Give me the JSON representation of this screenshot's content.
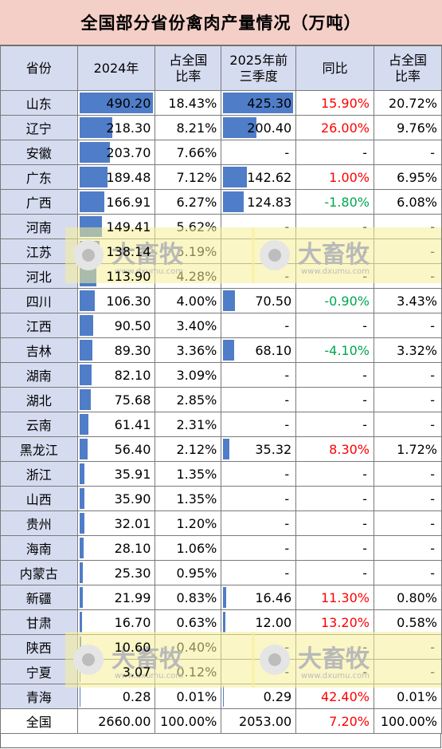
{
  "title": "全国部分省份禽肉产量情况（万吨）",
  "header": {
    "province": "省份",
    "y2024": "2024年",
    "share1_line1": "占全国",
    "share1_line2": "比率",
    "q2025_line1": "2025年前",
    "q2025_line2": "三季度",
    "yoy": "同比",
    "share2_line1": "占全国",
    "share2_line2": "比率"
  },
  "watermark": {
    "brand": "大畜牧",
    "url": "www.dxumu.com"
  },
  "colors": {
    "bar": "#4f7dc8",
    "header_bg": "#d6dcf0",
    "title_bg": "#f4cfc8",
    "positive": "#ff0000",
    "negative": "#00a650"
  },
  "chart_data": {
    "type": "table",
    "title": "全国部分省份禽肉产量情况（万吨）",
    "columns": [
      "省份",
      "2024年",
      "占全国比率",
      "2025年前三季度",
      "同比",
      "占全国比率"
    ],
    "rows": [
      {
        "province": "山东",
        "y2024": "490.20",
        "v2024": 490.2,
        "share2024": "18.43%",
        "q2025": "425.30",
        "vq2025": 425.3,
        "yoy": "15.90%",
        "yoy_sign": "pos",
        "share2025": "20.72%"
      },
      {
        "province": "辽宁",
        "y2024": "218.30",
        "v2024": 218.3,
        "share2024": "8.21%",
        "q2025": "200.40",
        "vq2025": 200.4,
        "yoy": "26.00%",
        "yoy_sign": "pos",
        "share2025": "9.76%"
      },
      {
        "province": "安徽",
        "y2024": "203.70",
        "v2024": 203.7,
        "share2024": "7.66%",
        "q2025": "-",
        "vq2025": 0,
        "yoy": "-",
        "yoy_sign": "none",
        "share2025": "-"
      },
      {
        "province": "广东",
        "y2024": "189.48",
        "v2024": 189.48,
        "share2024": "7.12%",
        "q2025": "142.62",
        "vq2025": 142.62,
        "yoy": "1.00%",
        "yoy_sign": "pos",
        "share2025": "6.95%"
      },
      {
        "province": "广西",
        "y2024": "166.91",
        "v2024": 166.91,
        "share2024": "6.27%",
        "q2025": "124.83",
        "vq2025": 124.83,
        "yoy": "-1.80%",
        "yoy_sign": "neg",
        "share2025": "6.08%"
      },
      {
        "province": "河南",
        "y2024": "149.41",
        "v2024": 149.41,
        "share2024": "5.62%",
        "q2025": "-",
        "vq2025": 0,
        "yoy": "-",
        "yoy_sign": "none",
        "share2025": "-"
      },
      {
        "province": "江苏",
        "y2024": "138.14",
        "v2024": 138.14,
        "share2024": "5.19%",
        "q2025": "-",
        "vq2025": 0,
        "yoy": "-",
        "yoy_sign": "none",
        "share2025": "-"
      },
      {
        "province": "河北",
        "y2024": "113.90",
        "v2024": 113.9,
        "share2024": "4.28%",
        "q2025": "-",
        "vq2025": 0,
        "yoy": "-",
        "yoy_sign": "none",
        "share2025": "-"
      },
      {
        "province": "四川",
        "y2024": "106.30",
        "v2024": 106.3,
        "share2024": "4.00%",
        "q2025": "70.50",
        "vq2025": 70.5,
        "yoy": "-0.90%",
        "yoy_sign": "neg",
        "share2025": "3.43%"
      },
      {
        "province": "江西",
        "y2024": "90.50",
        "v2024": 90.5,
        "share2024": "3.40%",
        "q2025": "-",
        "vq2025": 0,
        "yoy": "-",
        "yoy_sign": "none",
        "share2025": "-"
      },
      {
        "province": "吉林",
        "y2024": "89.30",
        "v2024": 89.3,
        "share2024": "3.36%",
        "q2025": "68.10",
        "vq2025": 68.1,
        "yoy": "-4.10%",
        "yoy_sign": "neg",
        "share2025": "3.32%"
      },
      {
        "province": "湖南",
        "y2024": "82.10",
        "v2024": 82.1,
        "share2024": "3.09%",
        "q2025": "-",
        "vq2025": 0,
        "yoy": "-",
        "yoy_sign": "none",
        "share2025": "-"
      },
      {
        "province": "湖北",
        "y2024": "75.68",
        "v2024": 75.68,
        "share2024": "2.85%",
        "q2025": "-",
        "vq2025": 0,
        "yoy": "-",
        "yoy_sign": "none",
        "share2025": "-"
      },
      {
        "province": "云南",
        "y2024": "61.41",
        "v2024": 61.41,
        "share2024": "2.31%",
        "q2025": "-",
        "vq2025": 0,
        "yoy": "-",
        "yoy_sign": "none",
        "share2025": "-"
      },
      {
        "province": "黑龙江",
        "y2024": "56.40",
        "v2024": 56.4,
        "share2024": "2.12%",
        "q2025": "35.32",
        "vq2025": 35.32,
        "yoy": "8.30%",
        "yoy_sign": "pos",
        "share2025": "1.72%"
      },
      {
        "province": "浙江",
        "y2024": "35.91",
        "v2024": 35.91,
        "share2024": "1.35%",
        "q2025": "-",
        "vq2025": 0,
        "yoy": "-",
        "yoy_sign": "none",
        "share2025": "-"
      },
      {
        "province": "山西",
        "y2024": "35.90",
        "v2024": 35.9,
        "share2024": "1.35%",
        "q2025": "-",
        "vq2025": 0,
        "yoy": "-",
        "yoy_sign": "none",
        "share2025": "-"
      },
      {
        "province": "贵州",
        "y2024": "32.01",
        "v2024": 32.01,
        "share2024": "1.20%",
        "q2025": "-",
        "vq2025": 0,
        "yoy": "-",
        "yoy_sign": "none",
        "share2025": "-"
      },
      {
        "province": "海南",
        "y2024": "28.10",
        "v2024": 28.1,
        "share2024": "1.06%",
        "q2025": "-",
        "vq2025": 0,
        "yoy": "-",
        "yoy_sign": "none",
        "share2025": "-"
      },
      {
        "province": "内蒙古",
        "y2024": "25.30",
        "v2024": 25.3,
        "share2024": "0.95%",
        "q2025": "-",
        "vq2025": 0,
        "yoy": "-",
        "yoy_sign": "none",
        "share2025": "-"
      },
      {
        "province": "新疆",
        "y2024": "21.99",
        "v2024": 21.99,
        "share2024": "0.83%",
        "q2025": "16.46",
        "vq2025": 16.46,
        "yoy": "11.30%",
        "yoy_sign": "pos",
        "share2025": "0.80%"
      },
      {
        "province": "甘肃",
        "y2024": "16.70",
        "v2024": 16.7,
        "share2024": "0.63%",
        "q2025": "12.00",
        "vq2025": 12.0,
        "yoy": "13.20%",
        "yoy_sign": "pos",
        "share2025": "0.58%"
      },
      {
        "province": "陕西",
        "y2024": "10.60",
        "v2024": 10.6,
        "share2024": "0.40%",
        "q2025": "-",
        "vq2025": 0,
        "yoy": "-",
        "yoy_sign": "none",
        "share2025": "-"
      },
      {
        "province": "宁夏",
        "y2024": "3.07",
        "v2024": 3.07,
        "share2024": "0.12%",
        "q2025": "-",
        "vq2025": 0,
        "yoy": "-",
        "yoy_sign": "none",
        "share2025": "-"
      },
      {
        "province": "青海",
        "y2024": "0.28",
        "v2024": 0.28,
        "share2024": "0.01%",
        "q2025": "0.29",
        "vq2025": 0.29,
        "yoy": "42.40%",
        "yoy_sign": "pos",
        "share2025": "0.01%"
      }
    ],
    "total": {
      "province": "全国",
      "y2024": "2660.00",
      "share2024": "100.00%",
      "q2025": "2053.00",
      "yoy": "7.20%",
      "yoy_sign": "pos",
      "share2025": "100.00%"
    },
    "bar_max_2024": 490.2,
    "bar_max_2025": 425.3
  }
}
